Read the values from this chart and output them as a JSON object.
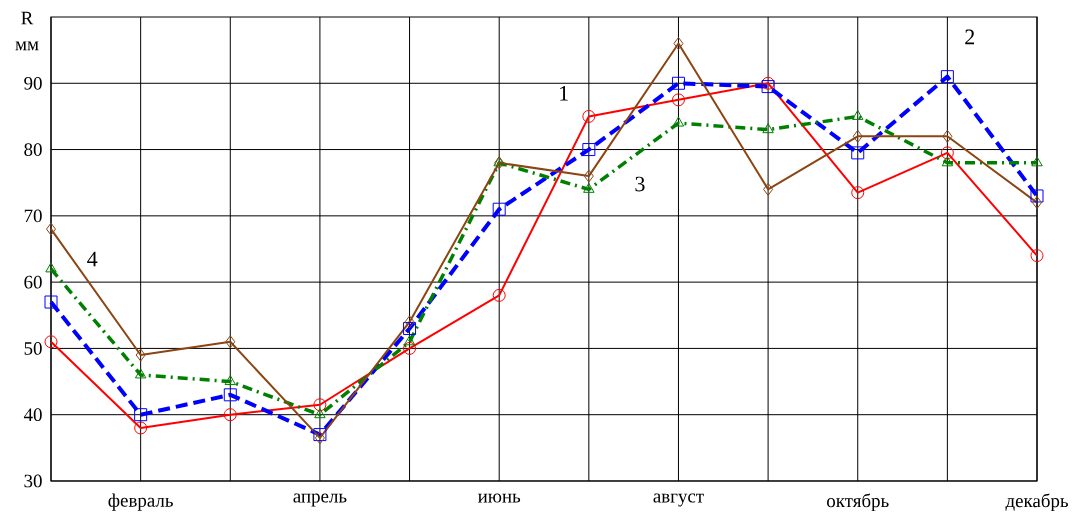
{
  "chart_data": {
    "type": "line",
    "ylabel": "R мм",
    "categories": [
      null,
      "февраль",
      null,
      "апрель",
      null,
      "июнь",
      null,
      "август",
      null,
      "октябрь",
      null,
      "декабрь"
    ],
    "series": [
      {
        "name": "1",
        "color": "#ff0000",
        "marker": "circle",
        "line_style": "solid",
        "values": [
          51,
          38,
          40,
          41.5,
          50,
          58,
          85,
          87.5,
          90,
          73.5,
          79.5,
          64
        ]
      },
      {
        "name": "2",
        "color": "#0000ff",
        "marker": "square",
        "line_style": "dashed",
        "values": [
          57,
          40,
          43,
          37,
          53,
          71,
          80,
          90,
          89.5,
          79.5,
          91,
          73
        ]
      },
      {
        "name": "3",
        "color": "#008000",
        "marker": "triangle",
        "line_style": "dashdot",
        "values": [
          62,
          46,
          45,
          40,
          51,
          78,
          74,
          84,
          83,
          85,
          78,
          78
        ]
      },
      {
        "name": "4",
        "color": "#8b4513",
        "marker": "diamond",
        "line_style": "solid",
        "values": [
          68,
          49,
          51,
          36.5,
          54,
          78,
          76,
          96,
          74,
          82,
          82,
          72
        ]
      }
    ],
    "ylim": [
      30,
      100
    ],
    "yticks": [
      30,
      40,
      50,
      60,
      70,
      80,
      90
    ],
    "grid": true,
    "legend": false
  }
}
